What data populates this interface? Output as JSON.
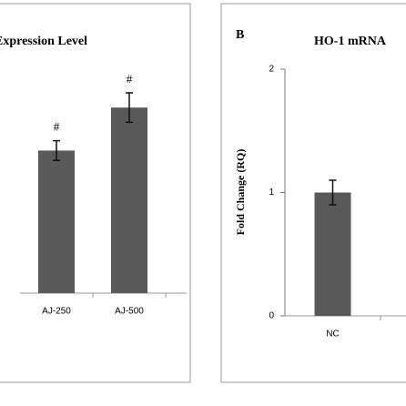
{
  "chart_data": [
    {
      "type": "bar",
      "title": "Expression Level",
      "categories": [
        "AJ-250",
        "AJ-500"
      ],
      "values": [
        1.16,
        1.51
      ],
      "errors": [
        0.08,
        0.12
      ],
      "annotations": [
        "#",
        "#"
      ],
      "color": "#595959",
      "ylim": [
        0,
        2
      ]
    },
    {
      "type": "bar",
      "label": "B",
      "title": "HO-1 mRNA",
      "ylabel": "Fold  Change  (RQ)",
      "categories": [
        "NC"
      ],
      "values": [
        1.0
      ],
      "errors": [
        0.1
      ],
      "color": "#595959",
      "ylim": [
        0,
        2
      ],
      "yticks": [
        0,
        1,
        2
      ]
    }
  ]
}
